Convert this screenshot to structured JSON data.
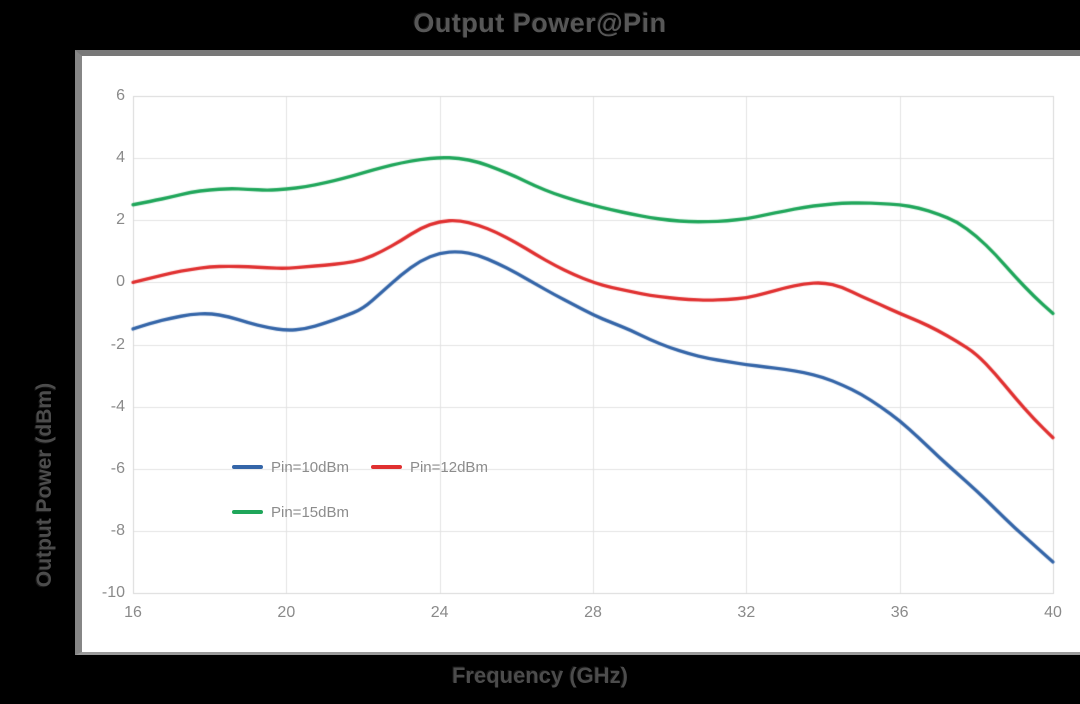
{
  "chart_data": {
    "type": "line",
    "title": "Output Power@Pin",
    "xlabel": "Frequency (GHz)",
    "ylabel": "Output Power (dBm)",
    "xlim": [
      16,
      40
    ],
    "ylim": [
      -10,
      6
    ],
    "xticks": [
      16,
      20,
      24,
      28,
      32,
      36,
      40
    ],
    "yticks": [
      6,
      4,
      2,
      0,
      -2,
      -4,
      -6,
      -8,
      -10
    ],
    "grid": true,
    "legend_position": "inside-lower-left",
    "x": [
      16,
      16.5,
      17,
      17.5,
      18,
      18.5,
      19,
      19.5,
      20,
      20.5,
      21,
      21.5,
      22,
      22.5,
      23,
      23.5,
      24,
      24.5,
      25,
      25.5,
      26,
      26.5,
      27,
      27.5,
      28,
      28.5,
      29,
      29.5,
      30,
      30.5,
      31,
      31.5,
      32,
      32.5,
      33,
      33.5,
      34,
      34.5,
      35,
      35.5,
      36,
      36.5,
      37,
      37.5,
      38,
      38.5,
      39,
      39.5,
      40
    ],
    "series": [
      {
        "name": "Pin=10dBm",
        "color": "#3465A8",
        "values": [
          -1.5,
          -1.3,
          -1.15,
          -1.03,
          -1.0,
          -1.1,
          -1.3,
          -1.45,
          -1.55,
          -1.5,
          -1.32,
          -1.1,
          -0.85,
          -0.3,
          0.25,
          0.7,
          0.95,
          1.0,
          0.88,
          0.62,
          0.3,
          -0.05,
          -0.4,
          -0.72,
          -1.05,
          -1.3,
          -1.55,
          -1.85,
          -2.1,
          -2.3,
          -2.45,
          -2.55,
          -2.65,
          -2.72,
          -2.8,
          -2.9,
          -3.05,
          -3.3,
          -3.6,
          -4.0,
          -4.45,
          -5.0,
          -5.6,
          -6.15,
          -6.7,
          -7.3,
          -7.9,
          -8.45,
          -9.0
        ]
      },
      {
        "name": "Pin=12dBm",
        "color": "#E03030",
        "values": [
          0.0,
          0.15,
          0.3,
          0.42,
          0.5,
          0.52,
          0.5,
          0.47,
          0.45,
          0.5,
          0.55,
          0.62,
          0.72,
          1.0,
          1.35,
          1.75,
          1.97,
          2.0,
          1.85,
          1.6,
          1.28,
          0.9,
          0.55,
          0.25,
          0.0,
          -0.17,
          -0.3,
          -0.42,
          -0.5,
          -0.55,
          -0.58,
          -0.55,
          -0.5,
          -0.35,
          -0.18,
          -0.05,
          0.0,
          -0.15,
          -0.45,
          -0.72,
          -1.0,
          -1.25,
          -1.55,
          -1.9,
          -2.3,
          -2.95,
          -3.7,
          -4.4,
          -5.0
        ]
      },
      {
        "name": "Pin=15dBm",
        "color": "#1FA65A",
        "values": [
          2.5,
          2.62,
          2.75,
          2.9,
          2.98,
          3.02,
          3.0,
          2.96,
          3.0,
          3.08,
          3.2,
          3.35,
          3.52,
          3.7,
          3.85,
          3.96,
          4.02,
          4.0,
          3.88,
          3.65,
          3.4,
          3.1,
          2.85,
          2.65,
          2.48,
          2.33,
          2.2,
          2.08,
          2.0,
          1.95,
          1.95,
          1.98,
          2.05,
          2.17,
          2.3,
          2.42,
          2.5,
          2.55,
          2.56,
          2.54,
          2.5,
          2.4,
          2.2,
          1.95,
          1.5,
          0.9,
          0.2,
          -0.45,
          -1.0
        ]
      }
    ]
  },
  "colors": {
    "background": "#000000",
    "panel": "#ffffff",
    "panel_shadow_top": "#787878",
    "panel_shadow_left": "#868686",
    "grid": "#e3e3e3",
    "plot_border": "#d8d8d8",
    "tick_text": "#8a8a8a",
    "legend_text": "#8c8c8c",
    "title_text": "#575757"
  }
}
